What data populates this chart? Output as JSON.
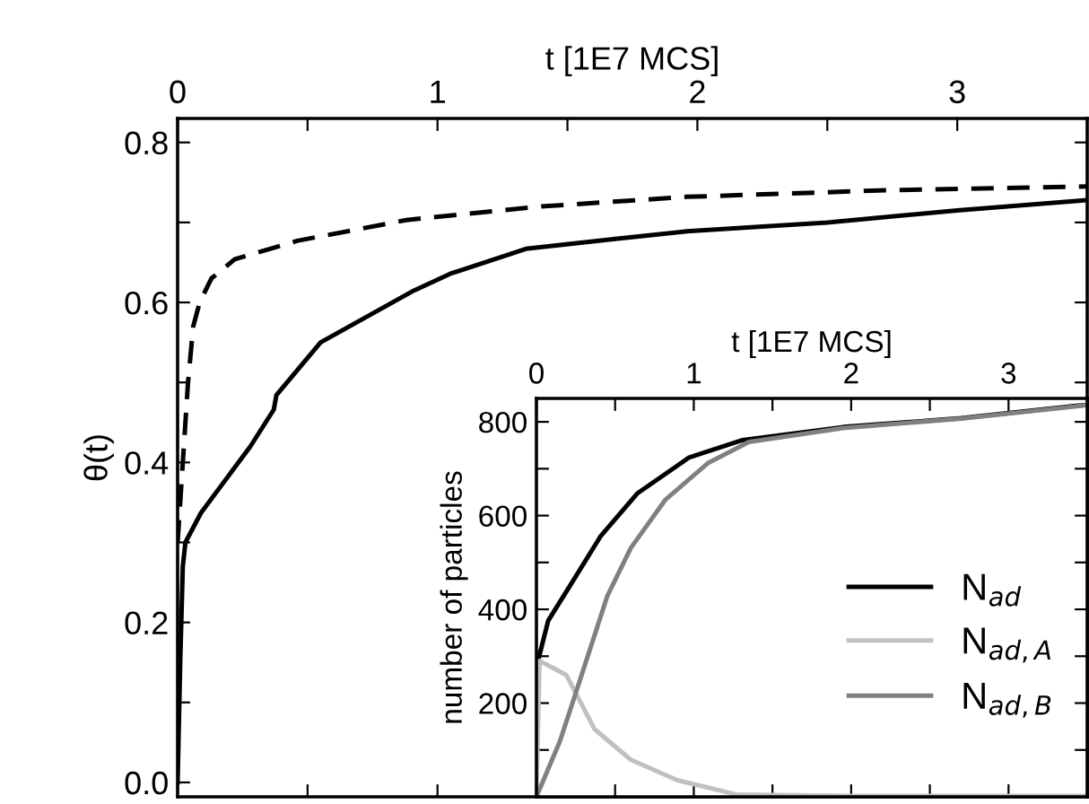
{
  "chart_data": [
    {
      "type": "line",
      "xlabel": "t [1E7 MCS]",
      "ylabel": "θ(t)",
      "xlim": [
        0,
        3.5
      ],
      "ylim": [
        -0.018,
        0.83
      ],
      "xticks": [
        0,
        {
          "value": 0.5,
          "label": null
        },
        1,
        {
          "value": 1.5,
          "label": null
        },
        2,
        {
          "value": 2.5,
          "label": null
        },
        3
      ],
      "yticks": [
        {
          "value": 0,
          "label": "0.0"
        },
        {
          "value": 0.1,
          "label": null
        },
        0.2,
        {
          "value": 0.3,
          "label": null
        },
        0.4,
        {
          "value": 0.5,
          "label": null
        },
        0.6,
        {
          "value": 0.7,
          "label": null
        },
        0.8
      ],
      "grid": false,
      "legend": false,
      "series": [
        {
          "color": "#000000",
          "line_style": "solid",
          "x": [
            0,
            0.01,
            0.02,
            0.03,
            0.09,
            0.28,
            0.37,
            0.38,
            0.55,
            0.91,
            1.05,
            1.34,
            1.7,
            1.96,
            2.5,
            3.0,
            3.5
          ],
          "values": [
            0,
            0.15,
            0.27,
            0.3,
            0.337,
            0.42,
            0.466,
            0.484,
            0.55,
            0.615,
            0.636,
            0.667,
            0.68,
            0.689,
            0.7,
            0.715,
            0.728
          ]
        },
        {
          "color": "#000000",
          "line_style": "dashed",
          "x": [
            0,
            0.02,
            0.04,
            0.06,
            0.085,
            0.13,
            0.22,
            0.46,
            0.88,
            1.4,
            1.96,
            2.7,
            3.5
          ],
          "values": [
            0.3,
            0.4,
            0.5,
            0.57,
            0.6,
            0.63,
            0.654,
            0.677,
            0.703,
            0.72,
            0.732,
            0.74,
            0.745
          ]
        }
      ]
    },
    {
      "type": "line",
      "xlabel": "t [1E7 MCS]",
      "ylabel": "number of particles",
      "xlim": [
        0,
        3.5
      ],
      "ylim": [
        0,
        850
      ],
      "xticks": [
        0,
        {
          "value": 0.5,
          "label": null
        },
        1,
        {
          "value": 1.5,
          "label": null
        },
        2,
        {
          "value": 2.5,
          "label": null
        },
        3
      ],
      "yticks": [
        {
          "value": 100,
          "label": null
        },
        200,
        {
          "value": 300,
          "label": null
        },
        400,
        {
          "value": 500,
          "label": null
        },
        600,
        {
          "value": 700,
          "label": null
        },
        800
      ],
      "grid": false,
      "legend": "center right",
      "series": [
        {
          "name": "N$_{ad}$",
          "color": "#000000",
          "x": [
            0,
            0.01,
            0.075,
            0.22,
            0.41,
            0.64,
            0.97,
            1.31,
            1.95,
            2.7,
            3.43,
            3.5
          ],
          "values": [
            250,
            290,
            376,
            454,
            557,
            647,
            724,
            761,
            789,
            808,
            834,
            836
          ]
        },
        {
          "name": "N$_{ad,A}$",
          "color": "#c0c0c0",
          "x": [
            0,
            0.02,
            0.19,
            0.37,
            0.6,
            0.9,
            1.27,
            2.0,
            3.0,
            3.5
          ],
          "values": [
            0,
            290,
            260,
            144,
            79,
            35,
            5,
            2,
            2,
            2
          ]
        },
        {
          "name": "N$_{ad,B}$",
          "color": "#808080",
          "x": [
            0,
            0.15,
            0.3,
            0.45,
            0.6,
            0.82,
            1.09,
            1.35,
            1.95,
            2.7,
            3.43,
            3.5
          ],
          "values": [
            0,
            119,
            273,
            428,
            531,
            634,
            712,
            757,
            787,
            807,
            833,
            836
          ]
        }
      ]
    }
  ]
}
